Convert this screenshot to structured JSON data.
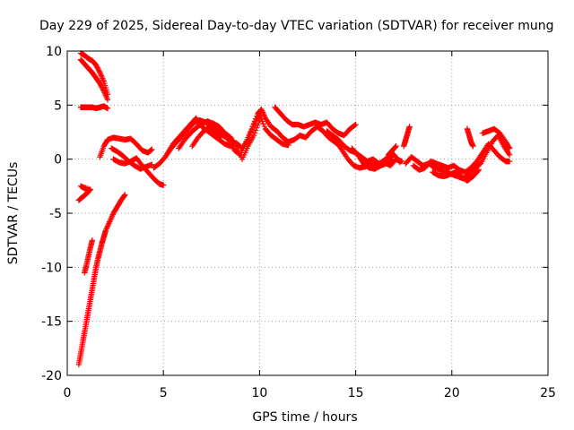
{
  "chart_data": {
    "type": "scatter",
    "title": "Day 229 of 2025, Sidereal Day-to-day VTEC variation (SDTVAR) for receiver mung",
    "xlabel": "GPS time / hours",
    "ylabel": "SDTVAR / TECUs",
    "xlim": [
      0,
      25
    ],
    "ylim": [
      -20,
      10
    ],
    "xticks": [
      0,
      5,
      10,
      15,
      20,
      25
    ],
    "yticks": [
      -20,
      -15,
      -10,
      -5,
      0,
      5,
      10
    ],
    "xtick_labels": [
      "0",
      "5",
      "10",
      "15",
      "20",
      "25"
    ],
    "ytick_labels": [
      "-20",
      "-15",
      "-10",
      "-5",
      "0",
      "5",
      "10"
    ],
    "grid": true,
    "marker": "plus",
    "color": "#ff0000",
    "series": [
      {
        "values": [
          [
            0.7,
            9.8
          ],
          [
            0.9,
            9.6
          ],
          [
            1.1,
            9.3
          ],
          [
            1.3,
            9.1
          ],
          [
            1.5,
            8.7
          ],
          [
            1.7,
            8.0
          ],
          [
            1.9,
            7.2
          ],
          [
            2.1,
            6.0
          ]
        ]
      },
      {
        "values": [
          [
            0.7,
            9.2
          ],
          [
            0.9,
            8.8
          ],
          [
            1.1,
            8.4
          ],
          [
            1.3,
            8.0
          ],
          [
            1.5,
            7.5
          ],
          [
            1.7,
            7.0
          ],
          [
            1.9,
            6.3
          ],
          [
            2.1,
            5.5
          ]
        ]
      },
      {
        "values": [
          [
            0.7,
            4.8
          ],
          [
            0.9,
            4.8
          ],
          [
            1.1,
            4.8
          ],
          [
            1.3,
            4.8
          ],
          [
            1.5,
            4.7
          ],
          [
            1.7,
            4.8
          ],
          [
            1.9,
            4.9
          ],
          [
            2.1,
            4.7
          ]
        ]
      },
      {
        "values": [
          [
            0.6,
            -3.8
          ],
          [
            0.8,
            -3.5
          ],
          [
            1.0,
            -3.2
          ],
          [
            1.2,
            -2.8
          ],
          [
            0.7,
            -2.5
          ],
          [
            1.0,
            -2.8
          ]
        ]
      },
      {
        "values": [
          [
            0.6,
            -19.0
          ],
          [
            0.7,
            -18.0
          ],
          [
            0.8,
            -17.0
          ],
          [
            0.9,
            -16.0
          ],
          [
            1.0,
            -15.0
          ],
          [
            1.1,
            -14.0
          ],
          [
            1.2,
            -13.0
          ],
          [
            1.3,
            -12.0
          ],
          [
            1.4,
            -11.0
          ],
          [
            1.5,
            -10.0
          ],
          [
            1.6,
            -9.2
          ],
          [
            1.7,
            -8.5
          ],
          [
            1.8,
            -7.8
          ],
          [
            1.9,
            -7.2
          ],
          [
            2.0,
            -6.6
          ],
          [
            2.2,
            -5.8
          ],
          [
            2.4,
            -5.0
          ],
          [
            2.6,
            -4.4
          ],
          [
            2.8,
            -3.8
          ],
          [
            3.0,
            -3.3
          ]
        ]
      },
      {
        "values": [
          [
            0.9,
            -10.5
          ],
          [
            1.0,
            -9.8
          ],
          [
            1.1,
            -9.0
          ],
          [
            1.2,
            -8.2
          ],
          [
            1.3,
            -7.5
          ]
        ]
      },
      {
        "values": [
          [
            1.7,
            0.2
          ],
          [
            1.9,
            1.2
          ],
          [
            2.1,
            1.8
          ],
          [
            2.4,
            2.0
          ],
          [
            2.7,
            1.9
          ],
          [
            3.0,
            1.8
          ],
          [
            3.3,
            1.9
          ],
          [
            3.6,
            1.4
          ],
          [
            3.9,
            0.8
          ],
          [
            4.2,
            0.6
          ],
          [
            4.4,
            0.9
          ]
        ]
      },
      {
        "values": [
          [
            2.4,
            0.0
          ],
          [
            2.7,
            -0.3
          ],
          [
            3.0,
            -0.4
          ],
          [
            3.3,
            -0.2
          ],
          [
            3.6,
            0.1
          ],
          [
            3.9,
            -0.6
          ],
          [
            4.2,
            -1.2
          ],
          [
            4.5,
            -1.8
          ],
          [
            4.8,
            -2.3
          ],
          [
            5.0,
            -2.4
          ]
        ]
      },
      {
        "values": [
          [
            2.3,
            1.0
          ],
          [
            2.6,
            0.7
          ],
          [
            2.9,
            0.3
          ],
          [
            3.2,
            -0.2
          ],
          [
            3.5,
            -0.6
          ],
          [
            3.8,
            -0.9
          ],
          [
            4.1,
            -0.7
          ],
          [
            4.4,
            -0.5
          ]
        ]
      },
      {
        "values": [
          [
            4.5,
            -0.8
          ],
          [
            4.8,
            -0.4
          ],
          [
            5.1,
            0.2
          ],
          [
            5.4,
            1.0
          ],
          [
            5.7,
            1.6
          ],
          [
            6.0,
            2.2
          ],
          [
            6.3,
            2.8
          ],
          [
            6.6,
            3.4
          ],
          [
            6.9,
            3.6
          ],
          [
            7.2,
            3.4
          ],
          [
            7.5,
            3.0
          ],
          [
            7.8,
            2.8
          ],
          [
            8.1,
            2.2
          ],
          [
            8.4,
            1.8
          ],
          [
            8.7,
            0.8
          ],
          [
            9.0,
            0.4
          ],
          [
            9.3,
            1.6
          ],
          [
            9.6,
            2.8
          ],
          [
            9.9,
            4.2
          ],
          [
            10.1,
            4.6
          ],
          [
            10.3,
            3.8
          ],
          [
            10.6,
            3.0
          ],
          [
            10.9,
            2.6
          ],
          [
            11.2,
            2.0
          ],
          [
            11.5,
            1.6
          ],
          [
            11.8,
            1.8
          ],
          [
            12.1,
            2.2
          ],
          [
            12.4,
            2.0
          ],
          [
            12.7,
            2.6
          ],
          [
            13.0,
            3.0
          ],
          [
            13.3,
            2.6
          ],
          [
            13.6,
            2.0
          ],
          [
            13.9,
            1.6
          ],
          [
            14.2,
            1.2
          ]
        ]
      },
      {
        "values": [
          [
            5.2,
            0.5
          ],
          [
            5.5,
            1.4
          ],
          [
            5.8,
            2.0
          ],
          [
            6.1,
            2.6
          ],
          [
            6.4,
            3.2
          ],
          [
            6.7,
            3.8
          ],
          [
            7.0,
            3.0
          ],
          [
            7.3,
            2.6
          ],
          [
            7.6,
            2.2
          ],
          [
            7.9,
            1.8
          ],
          [
            8.2,
            1.4
          ],
          [
            8.5,
            1.2
          ],
          [
            8.8,
            1.5
          ],
          [
            9.1,
            1.0
          ],
          [
            9.4,
            1.8
          ],
          [
            9.7,
            3.2
          ],
          [
            10.0,
            4.2
          ],
          [
            10.3,
            2.8
          ],
          [
            10.6,
            2.2
          ],
          [
            10.9,
            1.8
          ],
          [
            11.2,
            1.4
          ],
          [
            11.5,
            1.3
          ]
        ]
      },
      {
        "values": [
          [
            5.8,
            1.0
          ],
          [
            6.1,
            1.8
          ],
          [
            6.4,
            2.4
          ],
          [
            6.7,
            2.9
          ],
          [
            7.0,
            3.3
          ],
          [
            7.3,
            3.5
          ],
          [
            7.6,
            3.3
          ],
          [
            7.9,
            3.0
          ],
          [
            8.2,
            2.4
          ],
          [
            8.5,
            2.0
          ],
          [
            8.8,
            1.2
          ],
          [
            9.1,
            0.0
          ],
          [
            9.4,
            1.2
          ],
          [
            9.7,
            2.2
          ],
          [
            10.0,
            3.6
          ]
        ]
      },
      {
        "values": [
          [
            6.5,
            1.2
          ],
          [
            6.8,
            2.0
          ],
          [
            7.1,
            2.6
          ],
          [
            7.4,
            3.0
          ],
          [
            7.7,
            2.4
          ],
          [
            8.0,
            2.0
          ]
        ]
      },
      {
        "values": [
          [
            10.8,
            4.8
          ],
          [
            11.1,
            4.2
          ],
          [
            11.4,
            3.6
          ],
          [
            11.7,
            3.2
          ],
          [
            12.0,
            3.2
          ],
          [
            12.3,
            3.0
          ],
          [
            12.6,
            3.2
          ],
          [
            12.9,
            3.4
          ],
          [
            13.2,
            3.2
          ],
          [
            13.5,
            3.4
          ],
          [
            13.8,
            2.8
          ],
          [
            14.1,
            2.4
          ],
          [
            14.4,
            2.2
          ],
          [
            14.7,
            2.8
          ],
          [
            15.0,
            3.2
          ]
        ]
      },
      {
        "values": [
          [
            13.5,
            2.6
          ],
          [
            13.8,
            2.2
          ],
          [
            14.1,
            1.8
          ],
          [
            14.4,
            1.2
          ],
          [
            14.7,
            0.8
          ],
          [
            15.0,
            0.6
          ],
          [
            15.3,
            0.2
          ],
          [
            15.6,
            -0.2
          ],
          [
            15.9,
            0.0
          ],
          [
            16.2,
            -0.4
          ],
          [
            16.5,
            -0.3
          ],
          [
            16.8,
            -0.6
          ],
          [
            17.1,
            0.0
          ],
          [
            17.4,
            -0.2
          ]
        ]
      },
      {
        "values": [
          [
            14.0,
            1.6
          ],
          [
            14.3,
            0.8
          ],
          [
            14.6,
            0.0
          ],
          [
            14.9,
            -0.6
          ],
          [
            15.2,
            -0.8
          ],
          [
            15.5,
            -0.7
          ],
          [
            15.8,
            -0.4
          ],
          [
            16.1,
            -0.6
          ],
          [
            16.4,
            -0.2
          ],
          [
            16.7,
            0.2
          ],
          [
            17.0,
            0.4
          ],
          [
            17.3,
            -0.3
          ]
        ]
      },
      {
        "values": [
          [
            14.8,
            1.0
          ],
          [
            15.1,
            0.4
          ],
          [
            15.4,
            -0.4
          ],
          [
            15.7,
            -0.8
          ],
          [
            16.0,
            -0.9
          ],
          [
            16.3,
            -0.6
          ],
          [
            16.6,
            -0.4
          ],
          [
            16.9,
            0.0
          ]
        ]
      },
      {
        "values": [
          [
            16.7,
            0.4
          ],
          [
            16.9,
            0.8
          ],
          [
            17.1,
            1.2
          ]
        ]
      },
      {
        "values": [
          [
            17.5,
            1.2
          ],
          [
            17.6,
            1.8
          ],
          [
            17.7,
            2.4
          ],
          [
            17.8,
            3.0
          ]
        ]
      },
      {
        "values": [
          [
            17.6,
            -0.4
          ],
          [
            17.9,
            0.2
          ],
          [
            18.2,
            -0.2
          ],
          [
            18.5,
            -0.6
          ],
          [
            18.8,
            -0.4
          ],
          [
            19.1,
            -0.8
          ],
          [
            19.4,
            -1.0
          ],
          [
            19.7,
            -1.2
          ],
          [
            20.0,
            -1.4
          ],
          [
            20.3,
            -1.6
          ],
          [
            20.6,
            -1.8
          ],
          [
            20.9,
            -1.4
          ],
          [
            21.2,
            -0.8
          ],
          [
            21.5,
            -0.4
          ],
          [
            21.8,
            0.6
          ],
          [
            22.1,
            1.6
          ],
          [
            22.4,
            2.2
          ],
          [
            22.7,
            1.2
          ],
          [
            23.0,
            0.4
          ]
        ]
      },
      {
        "values": [
          [
            18.0,
            -0.6
          ],
          [
            18.3,
            -1.0
          ],
          [
            18.6,
            -0.8
          ],
          [
            18.9,
            -0.2
          ],
          [
            19.2,
            -0.4
          ],
          [
            19.5,
            -0.6
          ],
          [
            19.8,
            -0.8
          ],
          [
            20.1,
            -0.6
          ],
          [
            20.4,
            -1.0
          ],
          [
            20.7,
            -1.2
          ],
          [
            21.0,
            -0.8
          ],
          [
            21.3,
            -0.2
          ],
          [
            21.6,
            0.6
          ],
          [
            21.9,
            1.4
          ],
          [
            22.2,
            0.8
          ],
          [
            22.5,
            0.2
          ],
          [
            22.8,
            -0.2
          ],
          [
            23.0,
            -0.2
          ]
        ]
      },
      {
        "values": [
          [
            19.0,
            -1.2
          ],
          [
            19.3,
            -1.5
          ],
          [
            19.6,
            -1.6
          ],
          [
            19.9,
            -1.4
          ],
          [
            20.2,
            -1.2
          ],
          [
            20.5,
            -1.6
          ],
          [
            20.8,
            -2.0
          ],
          [
            21.1,
            -1.6
          ],
          [
            21.4,
            -1.0
          ]
        ]
      },
      {
        "values": [
          [
            20.8,
            2.8
          ],
          [
            20.9,
            2.2
          ],
          [
            21.0,
            1.6
          ],
          [
            21.1,
            1.2
          ]
        ]
      },
      {
        "values": [
          [
            21.6,
            2.4
          ],
          [
            21.9,
            2.6
          ],
          [
            22.2,
            2.8
          ],
          [
            22.5,
            2.4
          ],
          [
            22.8,
            1.6
          ],
          [
            23.0,
            1.0
          ]
        ]
      }
    ]
  }
}
